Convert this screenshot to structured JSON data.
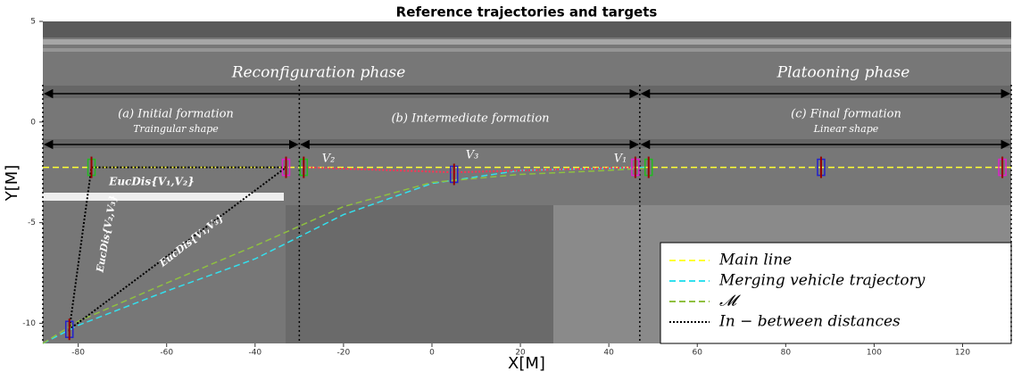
{
  "chart_data": {
    "type": "line",
    "title": "Reference trajectories and targets",
    "xlabel": "X[M]",
    "ylabel": "Y[M]",
    "xlim": [
      -88,
      131
    ],
    "ylim": [
      -11,
      5
    ],
    "xticks": [
      -80,
      -60,
      -40,
      -20,
      0,
      20,
      40,
      60,
      80,
      100,
      120
    ],
    "yticks": [
      -10,
      -5,
      0,
      5
    ],
    "legend": "lower right",
    "series": [
      {
        "name": "Main line",
        "color": "#ffff33",
        "style": "dashed",
        "x": [
          -88,
          131
        ],
        "y": [
          -2.25,
          -2.25
        ]
      },
      {
        "name": "Merging vehicle trajectory",
        "color": "#33e0ee",
        "style": "dashed",
        "x": [
          -88,
          -80,
          -60,
          -40,
          -20,
          0,
          20,
          40,
          48
        ],
        "y": [
          -11,
          -10.1,
          -8.4,
          -6.8,
          -4.6,
          -3.05,
          -2.4,
          -2.3,
          -2.25
        ]
      },
      {
        "name": "𝓜",
        "color": "#8fc040",
        "style": "dashed",
        "x": [
          -88,
          -80,
          -60,
          -40,
          -20,
          0,
          20,
          40,
          48
        ],
        "y": [
          -11,
          -9.9,
          -8.0,
          -6.15,
          -4.2,
          -3.0,
          -2.6,
          -2.4,
          -2.3
        ]
      },
      {
        "name": "In − between distances",
        "color": "#000000",
        "style": "dotted",
        "x": [
          -33,
          -77,
          -82,
          -33
        ],
        "y": [
          -2.25,
          -2.25,
          -10.3,
          -2.25
        ]
      },
      {
        "color": "#ff3355",
        "style": "dotted",
        "x": [
          -29,
          5,
          46
        ],
        "y": [
          -2.25,
          -2.5,
          -2.25
        ]
      }
    ],
    "points": [
      {
        "color": "#22bb22",
        "x": [
          -77,
          -29,
          49
        ],
        "y": [
          -2.25,
          -2.25,
          -2.25
        ]
      },
      {
        "color": "#dd22cc",
        "x": [
          -33,
          46,
          129
        ],
        "y": [
          -2.25,
          -2.25,
          -2.25
        ]
      },
      {
        "color": "#2222cc",
        "x": [
          -82,
          5,
          88
        ],
        "y": [
          -10.3,
          -2.6,
          -2.25
        ]
      }
    ],
    "vlines": [
      -88,
      -30,
      47,
      131
    ],
    "annotations": [
      "Reconfiguration phase",
      "Platooning phase",
      "(a) Initial formation",
      "Traingular shape",
      "(b) Intermediate formation",
      "(c) Final formation",
      "Linear shape",
      "V₂",
      "V₃",
      "V₁",
      "EucDis{V₁,V₂}",
      "EucDis{V₂,V₃}",
      "EucDis{V₁,V₃}"
    ]
  }
}
